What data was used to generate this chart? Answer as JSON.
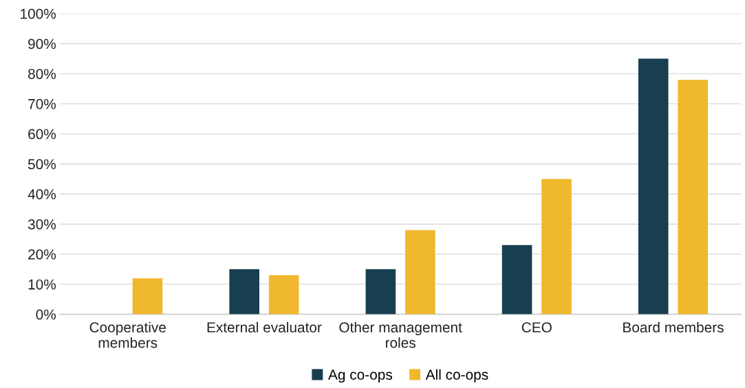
{
  "chart_data": {
    "type": "bar",
    "categories": [
      "Cooperative\nmembers",
      "External evaluator",
      "Other management\nroles",
      "CEO",
      "Board members"
    ],
    "series": [
      {
        "name": "Ag co-ops",
        "color": "#173f4f",
        "values": [
          0,
          15,
          15,
          23,
          85
        ]
      },
      {
        "name": "All co-ops",
        "color": "#f0b82d",
        "values": [
          12,
          13,
          28,
          45,
          78
        ]
      }
    ],
    "ylim": [
      0,
      100
    ],
    "yticks": [
      {
        "value": 0,
        "label": "0%"
      },
      {
        "value": 10,
        "label": "10%"
      },
      {
        "value": 20,
        "label": "20%"
      },
      {
        "value": 30,
        "label": "30%"
      },
      {
        "value": 40,
        "label": "40%"
      },
      {
        "value": 50,
        "label": "50%"
      },
      {
        "value": 60,
        "label": "60%"
      },
      {
        "value": 70,
        "label": "70%"
      },
      {
        "value": 80,
        "label": "80%"
      },
      {
        "value": 90,
        "label": "90%"
      },
      {
        "value": 100,
        "label": "100%"
      }
    ],
    "grid": "y",
    "legend": "bottom"
  }
}
